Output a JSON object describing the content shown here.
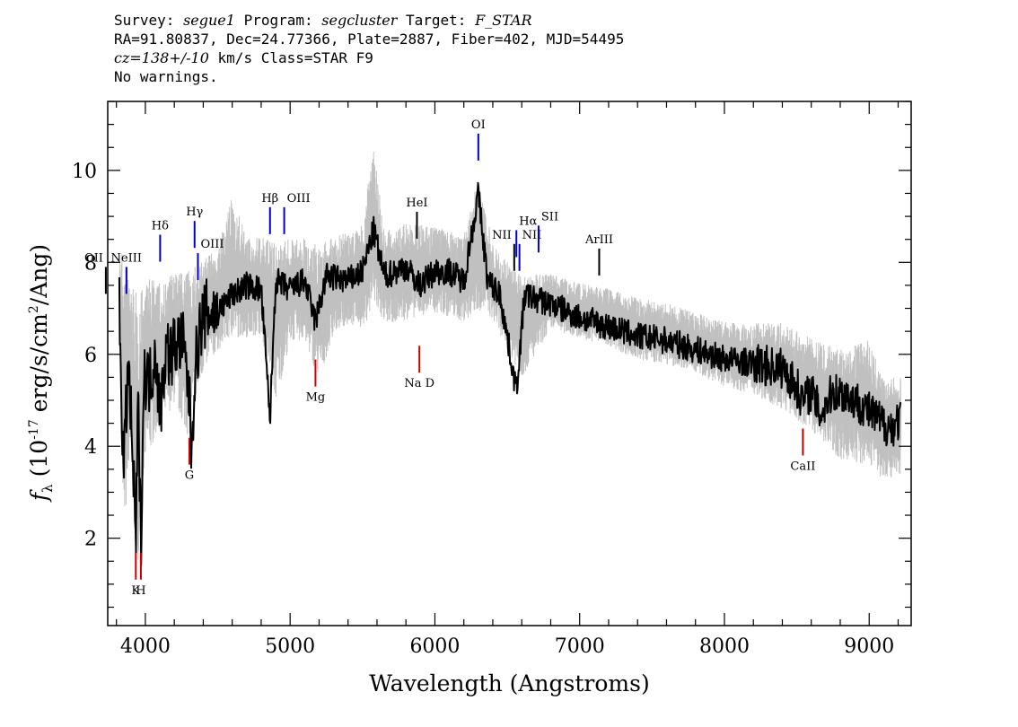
{
  "header": {
    "survey_label": "Survey:",
    "survey_value": "segue1",
    "program_label": "Program:",
    "program_value": "segcluster",
    "target_label": "Target:",
    "target_value": "F_STAR",
    "line2": "RA=91.80837, Dec=24.77366, Plate=2887, Fiber=402, MJD=54495",
    "cz_value": "cz=138+/-10",
    "cz_rest": " km/s Class=STAR F9",
    "line4": "No warnings."
  },
  "chart_data": {
    "type": "line",
    "xlabel": "Wavelength (Angstroms)",
    "ylabel_main": "f",
    "ylabel_sub": "λ",
    "ylabel_rest": " (10",
    "ylabel_exp": "-17",
    "ylabel_rest2": " erg/s/cm",
    "ylabel_exp2": "2",
    "ylabel_rest3": "/Ang)",
    "xlim": [
      3740,
      9290
    ],
    "ylim": [
      0.1,
      11.5
    ],
    "x_ticks": [
      "4000",
      "5000",
      "6000",
      "7000",
      "8000",
      "9000"
    ],
    "x_tick_values": [
      4000,
      5000,
      6000,
      7000,
      8000,
      9000
    ],
    "y_ticks": [
      "2",
      "4",
      "6",
      "8",
      "10"
    ],
    "y_tick_values": [
      2,
      4,
      6,
      8,
      10
    ],
    "series": [
      {
        "role": "flux",
        "color": "#000000",
        "x": [
          3820,
          3850,
          3880,
          3910,
          3934,
          3950,
          3969,
          3990,
          4030,
          4070,
          4102,
          4140,
          4180,
          4220,
          4260,
          4300,
          4320,
          4340,
          4380,
          4420,
          4500,
          4600,
          4700,
          4800,
          4861,
          4900,
          5000,
          5100,
          5175,
          5250,
          5400,
          5500,
          5577,
          5650,
          5800,
          5893,
          6000,
          6100,
          6200,
          6300,
          6364,
          6450,
          6563,
          6620,
          6700,
          6800,
          7000,
          7200,
          7400,
          7600,
          7800,
          8000,
          8200,
          8400,
          8498,
          8542,
          8600,
          8662,
          8750,
          8850,
          8950,
          9050,
          9150,
          9220
        ],
        "y": [
          7.1,
          3.3,
          5.8,
          4.0,
          1.8,
          5.0,
          1.9,
          5.6,
          5.4,
          6.1,
          4.7,
          6.1,
          6.0,
          6.3,
          6.2,
          5.2,
          3.9,
          5.6,
          6.6,
          6.9,
          6.9,
          7.3,
          7.5,
          7.4,
          4.6,
          7.6,
          7.4,
          7.6,
          6.7,
          7.7,
          7.6,
          7.8,
          8.7,
          7.7,
          7.9,
          7.5,
          7.8,
          7.8,
          7.6,
          9.5,
          7.6,
          7.3,
          5.2,
          7.3,
          7.2,
          7.1,
          6.8,
          6.6,
          6.4,
          6.3,
          6.1,
          5.9,
          5.8,
          5.7,
          5.3,
          5.0,
          5.2,
          4.7,
          5.2,
          5.1,
          4.9,
          4.6,
          4.4,
          4.6
        ]
      },
      {
        "role": "noise_upper",
        "color": "#c0c0c0",
        "x": [
          3820,
          3850,
          3900,
          3950,
          4000,
          4100,
          4200,
          4300,
          4400,
          4500,
          4600,
          4700,
          4800,
          4900,
          5000,
          5100,
          5200,
          5300,
          5400,
          5500,
          5577,
          5650,
          5800,
          6000,
          6200,
          6300,
          6400,
          6500,
          6600,
          6800,
          7000,
          7200,
          7400,
          7600,
          7800,
          8000,
          8200,
          8400,
          8600,
          8800,
          9000,
          9100,
          9220
        ],
        "y": [
          8.8,
          9.5,
          8.6,
          8.4,
          8.6,
          8.2,
          8.4,
          8.6,
          8.6,
          8.8,
          10.1,
          9.0,
          9.0,
          9.2,
          9.0,
          9.0,
          9.0,
          9.0,
          9.1,
          9.3,
          11.5,
          9.1,
          9.3,
          9.2,
          9.0,
          10.5,
          8.8,
          8.4,
          8.2,
          8.0,
          7.8,
          7.7,
          7.5,
          7.4,
          7.2,
          7.0,
          7.0,
          7.1,
          6.8,
          6.6,
          6.9,
          5.9,
          6.0
        ]
      },
      {
        "role": "noise_lower",
        "color": "#c0c0c0",
        "x": [
          3820,
          3850,
          3900,
          3950,
          4000,
          4100,
          4200,
          4300,
          4400,
          4500,
          4600,
          4700,
          4800,
          4900,
          5000,
          5100,
          5200,
          5300,
          5400,
          5500,
          5600,
          5800,
          6000,
          6200,
          6400,
          6600,
          6800,
          7000,
          7200,
          7400,
          7600,
          7800,
          8000,
          8200,
          8400,
          8600,
          8800,
          9000,
          9100,
          9220
        ],
        "y": [
          5.8,
          0.9,
          2.6,
          0.3,
          2.7,
          3.8,
          4.3,
          3.4,
          5.1,
          5.6,
          5.7,
          5.9,
          6.0,
          4.2,
          5.8,
          5.8,
          4.8,
          6.0,
          6.2,
          6.1,
          6.2,
          6.3,
          6.5,
          6.3,
          6.4,
          5.0,
          6.3,
          6.1,
          5.9,
          5.6,
          5.5,
          5.3,
          5.0,
          4.8,
          4.4,
          3.9,
          3.2,
          3.0,
          2.8,
          2.9
        ]
      }
    ],
    "emission_lines": [
      {
        "label": "OII",
        "x": 3727,
        "y": 7.9,
        "color": "#000000",
        "align": "end"
      },
      {
        "label": "NeIII",
        "x": 3869,
        "y": 7.9,
        "color": "#0000cc",
        "align": "middle"
      },
      {
        "label": "Hδ",
        "x": 4102,
        "y": 8.6,
        "color": "#0000cc",
        "align": "middle"
      },
      {
        "label": "Hγ",
        "x": 4340,
        "y": 8.9,
        "color": "#0000cc",
        "align": "middle"
      },
      {
        "label": "OIII",
        "x": 4363,
        "y": 8.2,
        "color": "#0000cc",
        "align": "start"
      },
      {
        "label": "Hβ",
        "x": 4861,
        "y": 9.2,
        "color": "#0000cc",
        "align": "middle"
      },
      {
        "label": "OIII",
        "x": 4959,
        "y": 9.2,
        "color": "#0000cc",
        "align": "start"
      },
      {
        "label": "HeI",
        "x": 5876,
        "y": 9.1,
        "color": "#000000",
        "align": "middle"
      },
      {
        "label": "OI",
        "x": 6300,
        "y": 10.8,
        "color": "#0000cc",
        "align": "middle"
      },
      {
        "label": "NII",
        "x": 6548,
        "y": 8.4,
        "color": "#000000",
        "align": "end"
      },
      {
        "label": "Hα",
        "x": 6563,
        "y": 8.7,
        "color": "#0000cc",
        "align": "start"
      },
      {
        "label": "NII",
        "x": 6584,
        "y": 8.4,
        "color": "#0000cc",
        "align": "start"
      },
      {
        "label": "SII",
        "x": 6716,
        "y": 8.8,
        "color": "#0000cc",
        "align": "start"
      },
      {
        "label": "ArIII",
        "x": 7135,
        "y": 8.3,
        "color": "#000000",
        "align": "middle"
      }
    ],
    "absorption_lines": [
      {
        "label": "K",
        "x": 3934,
        "y": 1.1,
        "color": "#cc0000"
      },
      {
        "label": "H",
        "x": 3969,
        "y": 1.1,
        "color": "#cc0000"
      },
      {
        "label": "G",
        "x": 4304,
        "y": 3.6,
        "color": "#cc0000"
      },
      {
        "label": "Mg",
        "x": 5175,
        "y": 5.3,
        "color": "#cc0000"
      },
      {
        "label": "Na D",
        "x": 5893,
        "y": 5.6,
        "color": "#cc0000"
      },
      {
        "label": "CaII",
        "x": 8542,
        "y": 3.8,
        "color": "#cc0000"
      }
    ],
    "grid": false
  }
}
